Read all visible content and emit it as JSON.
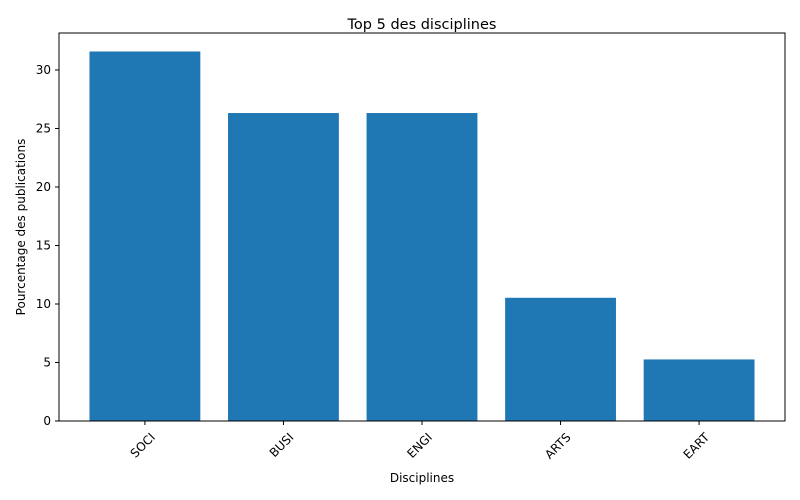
{
  "chart_data": {
    "type": "bar",
    "title": "Top 5 des disciplines",
    "xlabel": "Disciplines",
    "ylabel": "Pourcentage des publications",
    "categories": [
      "SOCI",
      "BUSI",
      "ENGI",
      "ARTS",
      "EART"
    ],
    "values": [
      31.58,
      26.32,
      26.32,
      10.53,
      5.26
    ],
    "ylim": [
      0,
      33.16
    ],
    "yticks": [
      0,
      5,
      10,
      15,
      20,
      25,
      30
    ],
    "xtick_rotation": 45,
    "grid": false,
    "legend": "none",
    "bar_color": "#1f77b4"
  }
}
